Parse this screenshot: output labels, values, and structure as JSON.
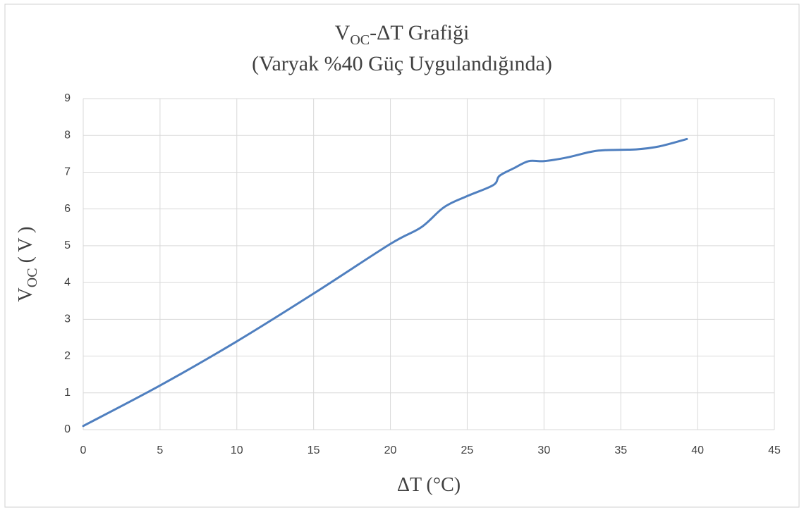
{
  "chart_data": {
    "type": "line",
    "title": [
      "V",
      "OC",
      "-ΔT Grafiği"
    ],
    "subtitle": "(Varyak %40 Güç Uygulandığında)",
    "x_label": "ΔT (°C)",
    "y_label": [
      "V",
      "OC",
      " ( V )"
    ],
    "x": [
      0,
      5,
      10,
      15,
      20,
      22,
      23.5,
      25,
      26.7,
      27.1,
      28,
      29,
      30,
      31.5,
      33,
      34,
      36,
      37.5,
      39.3
    ],
    "series": [
      {
        "name": "VOC",
        "color": "#4f7fbf",
        "values": [
          0.1,
          1.2,
          2.4,
          3.7,
          5.05,
          5.5,
          6.05,
          6.35,
          6.65,
          6.9,
          7.1,
          7.3,
          7.3,
          7.4,
          7.55,
          7.6,
          7.62,
          7.7,
          7.9
        ]
      }
    ],
    "xlim": [
      0,
      45
    ],
    "xticks": [
      0,
      5,
      10,
      15,
      20,
      25,
      30,
      35,
      40,
      45
    ],
    "ylim": [
      0,
      9
    ],
    "yticks": [
      0,
      1,
      2,
      3,
      4,
      5,
      6,
      7,
      8,
      9
    ],
    "grid": true
  }
}
